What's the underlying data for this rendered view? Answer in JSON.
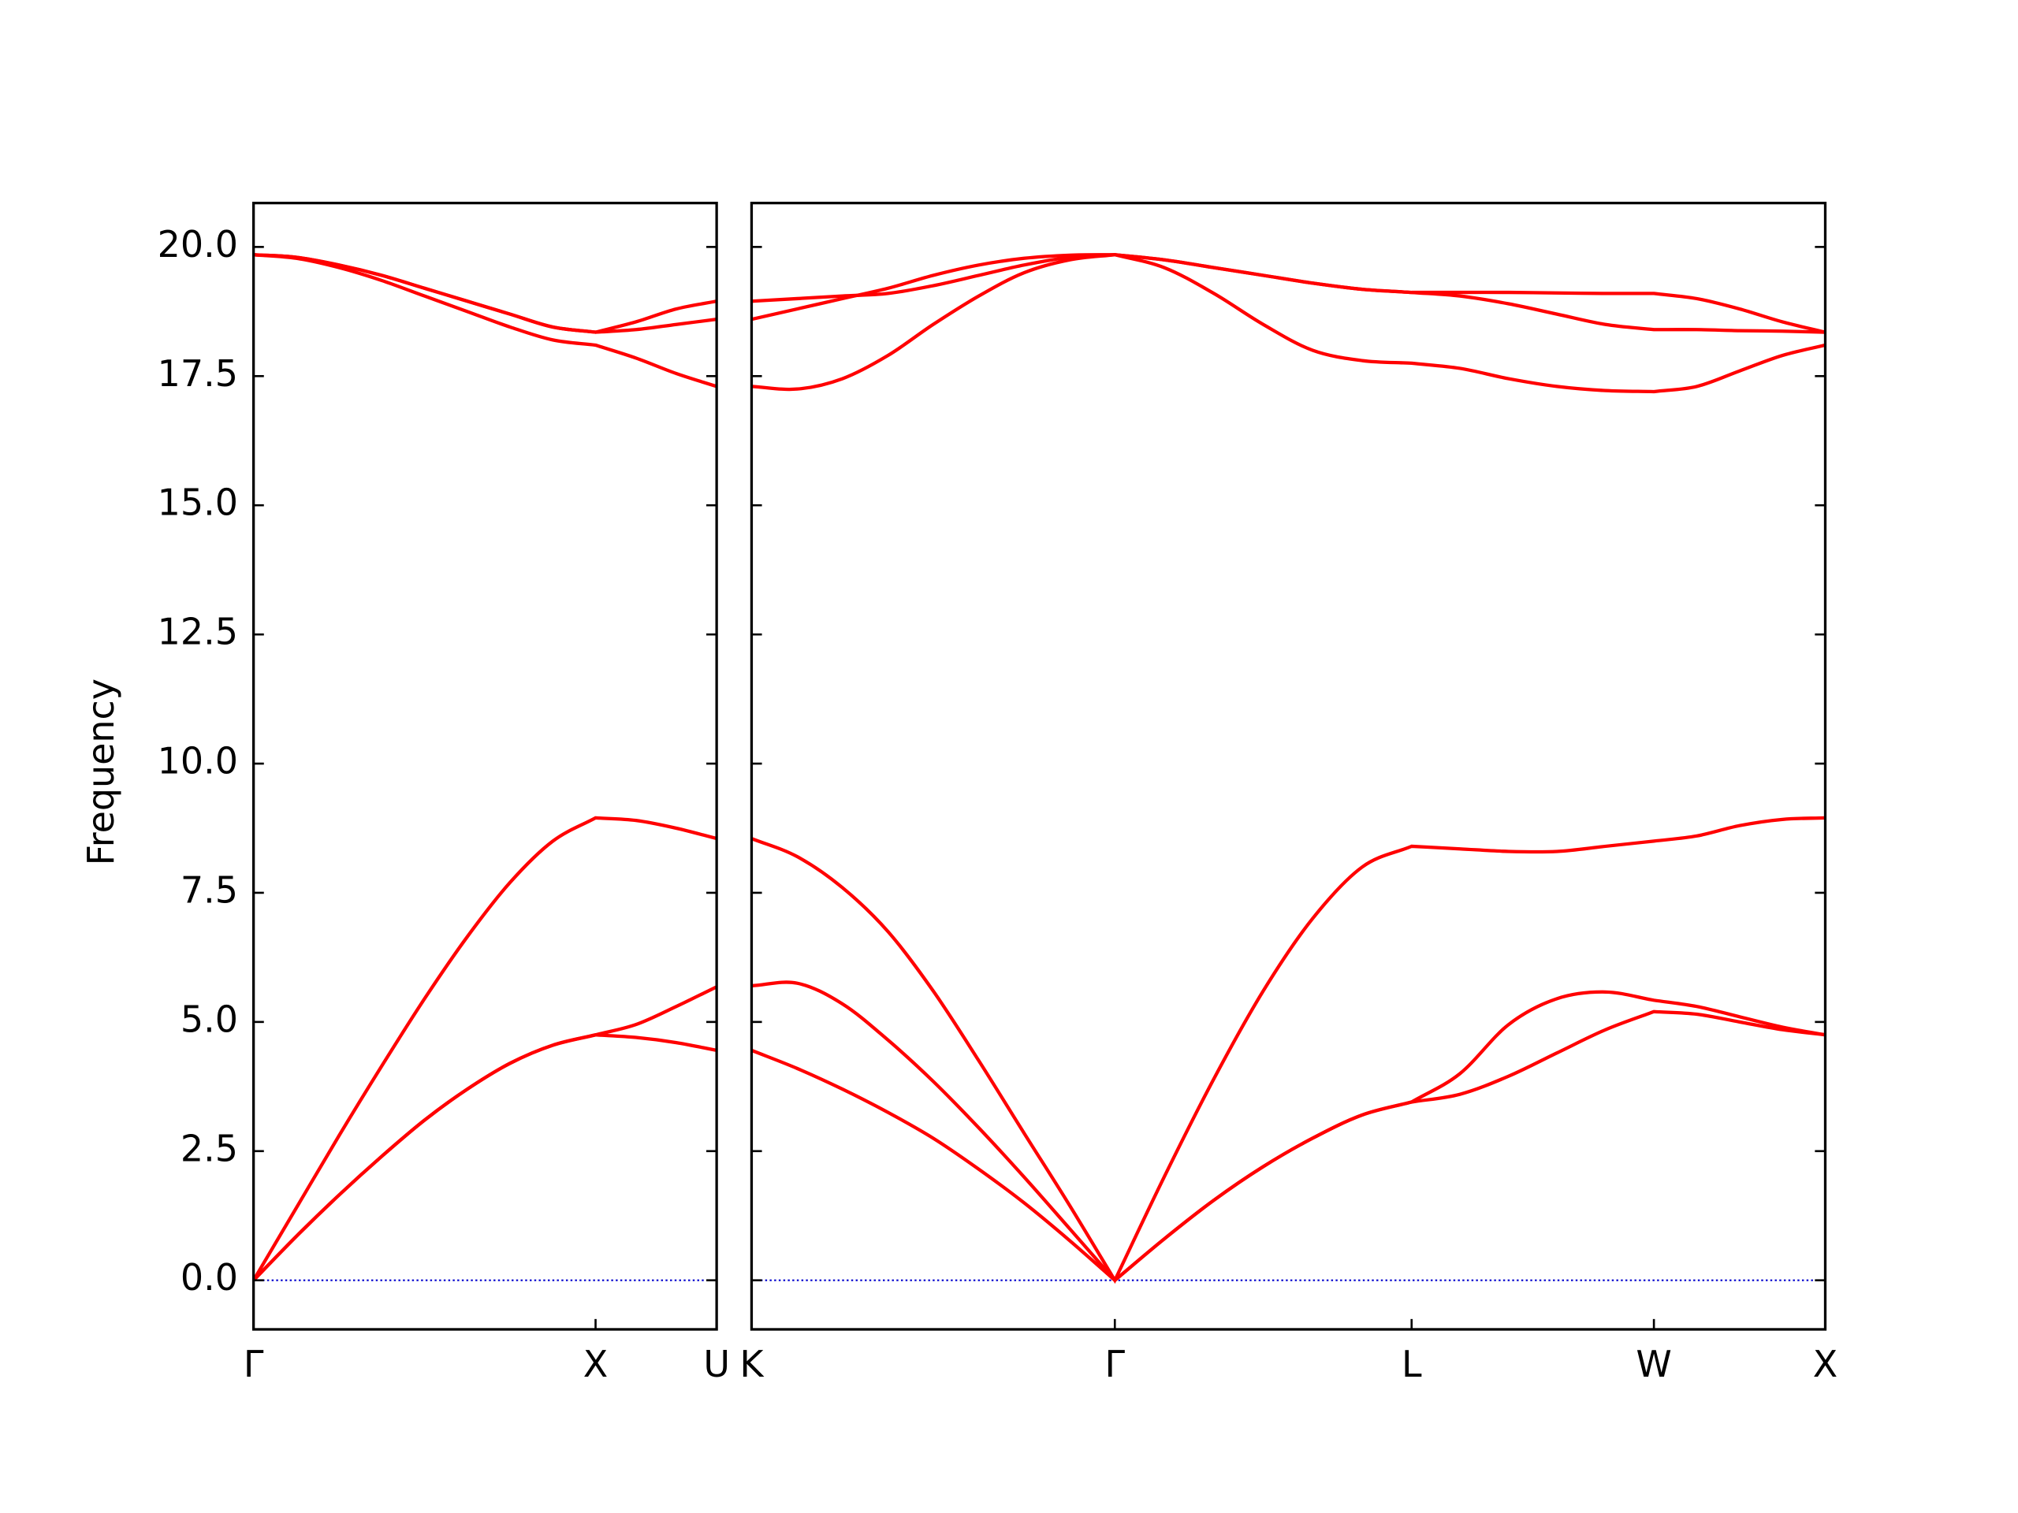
{
  "chart_data": [
    {
      "type": "line",
      "ylabel": "Frequency",
      "x": [
        0,
        0.125,
        0.25,
        0.375,
        0.5,
        0.625,
        0.75,
        0.875,
        1,
        1.118,
        1.236,
        1.354
      ],
      "xlim": [
        0,
        1.354
      ],
      "xticks": [
        {
          "value": 0,
          "label": "Γ"
        },
        {
          "value": 1,
          "label": "X"
        },
        {
          "value": 1.354,
          "label": "U"
        }
      ],
      "ylim": [
        -0.95,
        20.85
      ],
      "yticks": [
        {
          "value": 0,
          "label": "0.0"
        },
        2.5,
        {
          "value": 5,
          "label": "5.0"
        },
        7.5,
        {
          "value": 10,
          "label": "10.0"
        },
        12.5,
        {
          "value": 15,
          "label": "15.0"
        },
        17.5,
        {
          "value": 20,
          "label": "20.0"
        }
      ],
      "hline": 0,
      "hline_color": "#0000cd",
      "series": [
        {
          "color": "#ff0000",
          "values": [
            0,
            0.85,
            1.65,
            2.4,
            3.1,
            3.7,
            4.2,
            4.55,
            4.75,
            4.7,
            4.6,
            4.45
          ]
        },
        {
          "color": "#ff0000",
          "values": [
            0,
            0.85,
            1.65,
            2.4,
            3.1,
            3.7,
            4.2,
            4.55,
            4.75,
            4.95,
            5.3,
            5.68
          ]
        },
        {
          "color": "#ff0000",
          "values": [
            0,
            1.4,
            2.8,
            4.15,
            5.45,
            6.65,
            7.7,
            8.5,
            8.95,
            8.9,
            8.75,
            8.55
          ]
        },
        {
          "color": "#ff0000",
          "values": [
            19.85,
            19.78,
            19.6,
            19.35,
            19.05,
            18.75,
            18.45,
            18.2,
            18.1,
            17.85,
            17.55,
            17.3
          ]
        },
        {
          "color": "#ff0000",
          "values": [
            19.85,
            19.8,
            19.65,
            19.45,
            19.2,
            18.95,
            18.7,
            18.45,
            18.35,
            18.4,
            18.5,
            18.6
          ]
        },
        {
          "color": "#ff0000",
          "values": [
            19.85,
            19.8,
            19.65,
            19.45,
            19.2,
            18.95,
            18.7,
            18.45,
            18.35,
            18.55,
            18.8,
            18.95
          ]
        }
      ]
    },
    {
      "type": "line",
      "sharey": true,
      "x": [
        1.354,
        1.487,
        1.619,
        1.752,
        1.884,
        2.017,
        2.149,
        2.282,
        2.414,
        2.558,
        2.703,
        2.847,
        2.991,
        3.136,
        3.28,
        3.421,
        3.563,
        3.704,
        3.846,
        3.987,
        4.112,
        4.237,
        4.362,
        4.487
      ],
      "xlim": [
        1.354,
        4.487
      ],
      "xticks": [
        {
          "value": 1.354,
          "label": "K"
        },
        {
          "value": 2.414,
          "label": "Γ"
        },
        {
          "value": 3.28,
          "label": "L"
        },
        {
          "value": 3.987,
          "label": "W"
        },
        {
          "value": 4.487,
          "label": "X"
        }
      ],
      "hline": 0,
      "hline_color": "#0000cd",
      "series": [
        {
          "color": "#ff0000",
          "values": [
            4.45,
            4.1,
            3.7,
            3.25,
            2.75,
            2.15,
            1.5,
            0.77,
            0,
            0.8,
            1.55,
            2.2,
            2.75,
            3.2,
            3.45,
            3.6,
            3.95,
            4.4,
            4.85,
            5.2,
            5.15,
            5.0,
            4.85,
            4.75
          ]
        },
        {
          "color": "#ff0000",
          "values": [
            5.7,
            5.75,
            5.35,
            4.65,
            3.85,
            2.95,
            2.0,
            1.0,
            0,
            0.8,
            1.55,
            2.2,
            2.75,
            3.2,
            3.45,
            4.0,
            4.95,
            5.45,
            5.58,
            5.42,
            5.3,
            5.1,
            4.9,
            4.75
          ]
        },
        {
          "color": "#ff0000",
          "values": [
            8.55,
            8.2,
            7.6,
            6.75,
            5.6,
            4.25,
            2.85,
            1.45,
            0,
            2.0,
            3.9,
            5.6,
            7.0,
            8.0,
            8.4,
            8.35,
            8.3,
            8.3,
            8.4,
            8.5,
            8.6,
            8.8,
            8.92,
            8.95
          ]
        },
        {
          "color": "#ff0000",
          "values": [
            17.3,
            17.25,
            17.45,
            17.9,
            18.5,
            19.05,
            19.5,
            19.75,
            19.85,
            19.6,
            19.1,
            18.5,
            18.0,
            17.8,
            17.75,
            17.65,
            17.45,
            17.3,
            17.22,
            17.2,
            17.3,
            17.6,
            17.9,
            18.1
          ]
        },
        {
          "color": "#ff0000",
          "values": [
            18.6,
            18.8,
            19.0,
            19.2,
            19.45,
            19.65,
            19.78,
            19.84,
            19.85,
            19.75,
            19.6,
            19.45,
            19.3,
            19.18,
            19.12,
            19.05,
            18.9,
            18.7,
            18.5,
            18.4,
            18.4,
            18.38,
            18.37,
            18.35
          ]
        },
        {
          "color": "#ff0000",
          "values": [
            18.95,
            19.0,
            19.05,
            19.1,
            19.25,
            19.45,
            19.65,
            19.8,
            19.85,
            19.75,
            19.6,
            19.45,
            19.3,
            19.18,
            19.12,
            19.12,
            19.12,
            19.11,
            19.1,
            19.1,
            19.0,
            18.8,
            18.55,
            18.35
          ]
        }
      ]
    }
  ]
}
